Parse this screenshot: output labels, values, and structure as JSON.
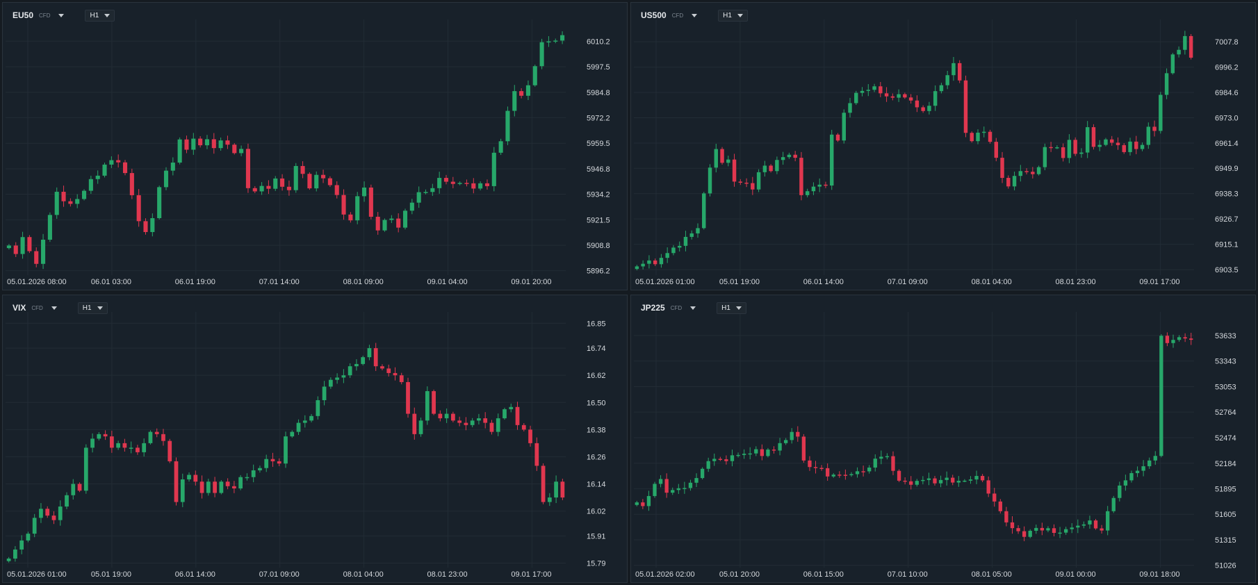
{
  "theme": {
    "bg": "#18212a",
    "grid": "#222c35",
    "up": "#27a86a",
    "down": "#e0374f",
    "text": "#d5d9dd"
  },
  "charts": [
    {
      "symbol": "EU50",
      "tag": "CFD",
      "timeframe": "H1",
      "chart_data": {
        "type": "candlestick",
        "y_ticks": [
          "6010.2",
          "5997.5",
          "5984.8",
          "5972.2",
          "5959.5",
          "5946.8",
          "5934.2",
          "5921.5",
          "5908.8",
          "5896.2"
        ],
        "x_ticks": [
          "05.01.2026  08:00",
          "06.01  03:00",
          "06.01  19:00",
          "07.01  14:00",
          "08.01  09:00",
          "09.01  04:00",
          "09.01  20:00"
        ],
        "ylim": [
          5894,
          6021
        ],
        "closes": [
          5908.7,
          5904.5,
          5912.9,
          5905.9,
          5899.6,
          5911.6,
          5923.9,
          5935.4,
          5930.7,
          5929.4,
          5931.8,
          5935.9,
          5941.7,
          5943.4,
          5948.9,
          5951.1,
          5950.0,
          5944.7,
          5933.7,
          5920.8,
          5915.4,
          5922.3,
          5937.7,
          5945.9,
          5949.9,
          5961.4,
          5956.3,
          5961.8,
          5958.5,
          5961.5,
          5957.1,
          5960.9,
          5958.8,
          5954.6,
          5956.7,
          5937.2,
          5935.6,
          5938.3,
          5936.9,
          5942.0,
          5937.9,
          5936.2,
          5948.2,
          5944.3,
          5937.1,
          5943.8,
          5942.1,
          5938.7,
          5933.8,
          5924.1,
          5921.2,
          5933.2,
          5937.5,
          5923.0,
          5916.2,
          5921.4,
          5922.1,
          5917.6,
          5926.0,
          5930.0,
          5935.2,
          5935.3,
          5937.2,
          5942.3,
          5940.4,
          5939.3,
          5939.8,
          5939.6,
          5937.0,
          5939.6,
          5938.2,
          5954.8,
          5960.5,
          5975.6,
          5985.4,
          5983.1,
          5988.3,
          5997.8,
          6009.7,
          6010.1,
          6010.5,
          6013.2
        ]
      }
    },
    {
      "symbol": "US500",
      "tag": "CFD",
      "timeframe": "H1",
      "chart_data": {
        "type": "candlestick",
        "y_ticks": [
          "7007.8",
          "6996.2",
          "6984.6",
          "6973.0",
          "6961.4",
          "6949.9",
          "6938.3",
          "6926.7",
          "6915.1",
          "6903.5"
        ],
        "x_ticks": [
          "05.01.2026  01:00",
          "05.01  19:00",
          "06.01  14:00",
          "07.01  09:00",
          "08.01  04:00",
          "08.01  23:00",
          "09.01  17:00"
        ],
        "ylim": [
          6901,
          7018
        ],
        "closes": [
          6905.0,
          6906.2,
          6907.7,
          6906.0,
          6908.9,
          6911.1,
          6913.6,
          6914.4,
          6918.5,
          6920.1,
          6922.5,
          6938.4,
          6950.2,
          6958.7,
          6952.4,
          6953.9,
          6943.8,
          6943.3,
          6943.1,
          6940.2,
          6948.1,
          6951.1,
          6948.6,
          6953.7,
          6955.0,
          6956.1,
          6954.7,
          6937.6,
          6939.4,
          6941.5,
          6942.4,
          6942.0,
          6965.3,
          6962.6,
          6975.3,
          6979.7,
          6984.4,
          6985.3,
          6985.8,
          6987.4,
          6984.2,
          6982.8,
          6982.2,
          6983.8,
          6982.3,
          6980.9,
          6977.8,
          6976.1,
          6978.5,
          6985.2,
          6987.9,
          6992.5,
          6998.0,
          6990.1,
          6966.1,
          6962.3,
          6966.2,
          6966.6,
          6962.0,
          6954.7,
          6945.5,
          6941.6,
          6946.4,
          6948.6,
          6948.3,
          6947.2,
          6950.4,
          6959.6,
          6959.5,
          6959.5,
          6954.6,
          6962.9,
          6956.5,
          6957.1,
          6968.7,
          6959.7,
          6960.6,
          6963.1,
          6961.6,
          6960.5,
          6957.3,
          6962.1,
          6958.7,
          6960.6,
          6968.9,
          6967.0,
          6983.5,
          6993.4,
          7002.0,
          7004.1,
          7010.4,
          7000.5
        ]
      }
    },
    {
      "symbol": "VIX",
      "tag": "CFD",
      "timeframe": "H1",
      "chart_data": {
        "type": "candlestick",
        "y_ticks": [
          "16.85",
          "16.74",
          "16.62",
          "16.50",
          "16.38",
          "16.26",
          "16.14",
          "16.02",
          "15.91",
          "15.79"
        ],
        "x_ticks": [
          "05.01.2026  01:00",
          "05.01  19:00",
          "06.01  14:00",
          "07.01  09:00",
          "08.01  04:00",
          "08.01  23:00",
          "09.01  17:00"
        ],
        "ylim": [
          15.77,
          16.9
        ],
        "closes": [
          15.81,
          15.85,
          15.89,
          15.92,
          15.99,
          16.03,
          16.0,
          15.98,
          16.04,
          16.09,
          16.14,
          16.11,
          16.3,
          16.34,
          16.36,
          16.35,
          16.3,
          16.32,
          16.3,
          16.3,
          16.28,
          16.32,
          16.37,
          16.36,
          16.33,
          16.24,
          16.06,
          16.16,
          16.18,
          16.15,
          16.1,
          16.15,
          16.1,
          16.15,
          16.13,
          16.12,
          16.17,
          16.17,
          16.2,
          16.21,
          16.25,
          16.24,
          16.23,
          16.35,
          16.37,
          16.41,
          16.42,
          16.44,
          16.51,
          16.57,
          16.6,
          16.61,
          16.62,
          16.66,
          16.67,
          16.7,
          16.74,
          16.66,
          16.65,
          16.63,
          16.62,
          16.59,
          16.45,
          16.36,
          16.42,
          16.55,
          16.45,
          16.43,
          16.45,
          16.42,
          16.41,
          16.4,
          16.42,
          16.43,
          16.41,
          16.37,
          16.43,
          16.47,
          16.48,
          16.4,
          16.38,
          16.32,
          16.22,
          16.06,
          16.08,
          16.15,
          16.08
        ]
      }
    },
    {
      "symbol": "JP225",
      "tag": "CFD",
      "timeframe": "H1",
      "chart_data": {
        "type": "candlestick",
        "y_ticks": [
          "53633",
          "53343",
          "53053",
          "52764",
          "52474",
          "52184",
          "51895",
          "51605",
          "51315",
          "51026"
        ],
        "x_ticks": [
          "05.01.2026  02:00",
          "05.01  20:00",
          "06.01  15:00",
          "07.01  10:00",
          "08.01  05:00",
          "09.01  00:00",
          "09.01  18:00"
        ],
        "ylim": [
          51000,
          53900
        ],
        "closes": [
          51740,
          51698,
          51812,
          51950,
          52005,
          51850,
          51880,
          51900,
          51903,
          51963,
          52016,
          52121,
          52208,
          52234,
          52229,
          52208,
          52274,
          52278,
          52292,
          52295,
          52343,
          52266,
          52339,
          52328,
          52412,
          52447,
          52539,
          52486,
          52215,
          52141,
          52131,
          52128,
          52034,
          52055,
          52053,
          52051,
          52060,
          52093,
          52092,
          52135,
          52236,
          52258,
          52264,
          52098,
          51986,
          51979,
          51940,
          51984,
          51994,
          52012,
          51956,
          51994,
          52020,
          51965,
          51985,
          51986,
          52000,
          52040,
          51990,
          51840,
          51750,
          51640,
          51513,
          51448,
          51413,
          51349,
          51418,
          51450,
          51422,
          51447,
          51394,
          51397,
          51436,
          51455,
          51476,
          51490,
          51535,
          51445,
          51421,
          51640,
          51790,
          51931,
          51990,
          52072,
          52099,
          52150,
          52215,
          52267,
          53630,
          53547,
          53583,
          53614,
          53599,
          53584
        ]
      }
    }
  ]
}
